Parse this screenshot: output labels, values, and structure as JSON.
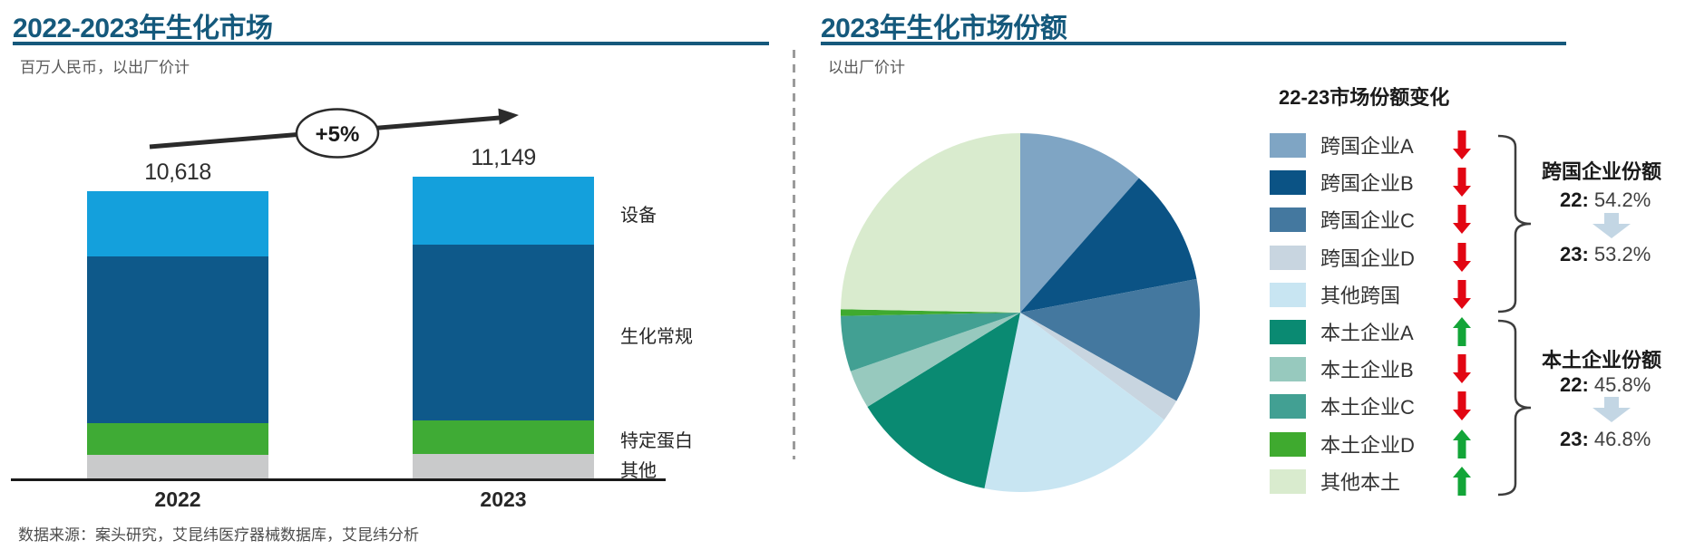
{
  "left_panel": {
    "title": "2022-2023年生化市场",
    "subtitle": "百万人民币，以出厂价计",
    "growth_label": "+5%",
    "source": "数据来源：案头研究，艾昆纬医疗器械数据库，艾昆纬分析"
  },
  "right_panel": {
    "title": "2023年生化市场份额",
    "subtitle": "以出厂价计",
    "legend_title": "22-23市场份额变化",
    "groups": [
      {
        "name": "跨国企业份额",
        "from_label": "22:",
        "from_value": "54.2%",
        "to_label": "23:",
        "to_value": "53.2%"
      },
      {
        "name": "本土企业份额",
        "from_label": "22:",
        "from_value": "45.8%",
        "to_label": "23:",
        "to_value": "46.8%"
      }
    ]
  },
  "chart_data": [
    {
      "type": "bar",
      "stacked": true,
      "title": "2022-2023年生化市场",
      "subtitle": "百万人民币，以出厂价计",
      "unit": "百万人民币（出厂价）",
      "categories": [
        "2022",
        "2023"
      ],
      "totals": [
        10618,
        11149
      ],
      "totals_display": [
        "10,618",
        "11,149"
      ],
      "growth_annotation": "+5%",
      "series_order": "top-to-bottom",
      "series": [
        {
          "name": "设备",
          "color": "#14A0DC",
          "values": [
            2400,
            2510
          ]
        },
        {
          "name": "生化常规",
          "color": "#0E598A",
          "values": [
            6150,
            6470
          ]
        },
        {
          "name": "特定蛋白",
          "color": "#3FAB35",
          "values": [
            1170,
            1240
          ]
        },
        {
          "name": "其他",
          "color": "#C9CACB",
          "values": [
            900,
            930
          ]
        }
      ]
    },
    {
      "type": "pie",
      "title": "2023年生化市场份额",
      "subtitle": "以出厂价计",
      "start_angle_deg": 0,
      "direction": "clockwise",
      "slices": [
        {
          "label": "跨国企业A",
          "value": 11.5,
          "color": "#7FA5C4",
          "trend": "down"
        },
        {
          "label": "跨国企业B",
          "value": 10.5,
          "color": "#0B5385",
          "trend": "down"
        },
        {
          "label": "跨国企业C",
          "value": 11.2,
          "color": "#44789F",
          "trend": "down"
        },
        {
          "label": "跨国企业D",
          "value": 2.0,
          "color": "#C8D5E0",
          "trend": "down"
        },
        {
          "label": "其他跨国",
          "value": 18.0,
          "color": "#C8E5F2",
          "trend": "down"
        },
        {
          "label": "本土企业A",
          "value": 13.0,
          "color": "#0A8A72",
          "trend": "up"
        },
        {
          "label": "本土企业B",
          "value": 3.5,
          "color": "#97C9BE",
          "trend": "down"
        },
        {
          "label": "本土企业C",
          "value": 5.0,
          "color": "#42A093",
          "trend": "down"
        },
        {
          "label": "本土企业D",
          "value": 0.6,
          "color": "#3FAA2F",
          "trend": "up"
        },
        {
          "label": "其他本土",
          "value": 24.7,
          "color": "#D9EBCE",
          "trend": "up"
        }
      ],
      "group_summaries": [
        {
          "label": "跨国企业份额",
          "22": "54.2%",
          "23": "53.2%"
        },
        {
          "label": "本土企业份额",
          "22": "45.8%",
          "23": "46.8%"
        }
      ]
    }
  ],
  "colors": {
    "accent": "#15597C",
    "axis": "#1A1A1A",
    "arrow_stroke": "#2B2B2B",
    "trend_up": "#13A538",
    "trend_down": "#E20613",
    "summary_arrow": "#C3D6E4",
    "divider": "#9B9B9B",
    "text_dark": "#262626",
    "text_gray": "#595959"
  }
}
